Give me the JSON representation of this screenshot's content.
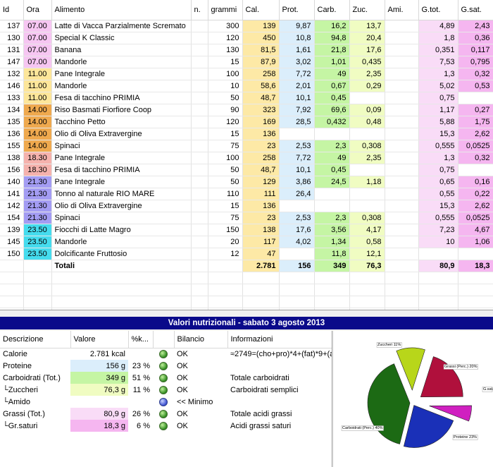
{
  "food_table": {
    "headers": [
      "Id",
      "Ora",
      "Alimento",
      "n.",
      "grammi",
      "Cal.",
      "Prot.",
      "Carb.",
      "Zuc.",
      "Ami.",
      "G.tot.",
      "G.sat."
    ],
    "rows": [
      {
        "id": "137",
        "ora": "07.00",
        "alimento": "Latte di Vacca Parzialmente Scremato",
        "n": "",
        "grammi": "300",
        "cal": "139",
        "prot": "9,87",
        "carb": "16,2",
        "zuc": "13,7",
        "ami": "",
        "gtot": "4,89",
        "gsat": "2,43",
        "ora_color": "#f6c6f2"
      },
      {
        "id": "130",
        "ora": "07.00",
        "alimento": "Special K Classic",
        "n": "",
        "grammi": "120",
        "cal": "450",
        "prot": "10,8",
        "carb": "94,8",
        "zuc": "20,4",
        "ami": "",
        "gtot": "1,8",
        "gsat": "0,36",
        "ora_color": "#f6c6f2"
      },
      {
        "id": "131",
        "ora": "07.00",
        "alimento": "Banana",
        "n": "",
        "grammi": "130",
        "cal": "81,5",
        "prot": "1,61",
        "carb": "21,8",
        "zuc": "17,6",
        "ami": "",
        "gtot": "0,351",
        "gsat": "0,117",
        "ora_color": "#f6c6f2"
      },
      {
        "id": "147",
        "ora": "07.00",
        "alimento": "Mandorle",
        "n": "",
        "grammi": "15",
        "cal": "87,9",
        "prot": "3,02",
        "carb": "1,01",
        "zuc": "0,435",
        "ami": "",
        "gtot": "7,53",
        "gsat": "0,795",
        "ora_color": "#f6c6f2"
      },
      {
        "id": "132",
        "ora": "11.00",
        "alimento": "Pane Integrale",
        "n": "",
        "grammi": "100",
        "cal": "258",
        "prot": "7,72",
        "carb": "49",
        "zuc": "2,35",
        "ami": "",
        "gtot": "1,3",
        "gsat": "0,32",
        "ora_color": "#fde69a"
      },
      {
        "id": "146",
        "ora": "11.00",
        "alimento": "Mandorle",
        "n": "",
        "grammi": "10",
        "cal": "58,6",
        "prot": "2,01",
        "carb": "0,67",
        "zuc": "0,29",
        "ami": "",
        "gtot": "5,02",
        "gsat": "0,53",
        "ora_color": "#fde69a"
      },
      {
        "id": "133",
        "ora": "11.00",
        "alimento": "Fesa di tacchino PRIMIA",
        "n": "",
        "grammi": "50",
        "cal": "48,7",
        "prot": "10,1",
        "carb": "0,45",
        "zuc": "",
        "ami": "",
        "gtot": "0,75",
        "gsat": "",
        "ora_color": "#fde69a"
      },
      {
        "id": "134",
        "ora": "14.00",
        "alimento": "Riso Basmati Fiorfiore Coop",
        "n": "",
        "grammi": "90",
        "cal": "323",
        "prot": "7,92",
        "carb": "69,6",
        "zuc": "0,09",
        "ami": "",
        "gtot": "1,17",
        "gsat": "0,27",
        "ora_color": "#efa94e"
      },
      {
        "id": "135",
        "ora": "14.00",
        "alimento": "Tacchino Petto",
        "n": "",
        "grammi": "120",
        "cal": "169",
        "prot": "28,5",
        "carb": "0,432",
        "zuc": "0,48",
        "ami": "",
        "gtot": "5,88",
        "gsat": "1,75",
        "ora_color": "#efa94e"
      },
      {
        "id": "136",
        "ora": "14.00",
        "alimento": "Olio di Oliva Extravergine",
        "n": "",
        "grammi": "15",
        "cal": "136",
        "prot": "",
        "carb": "",
        "zuc": "",
        "ami": "",
        "gtot": "15,3",
        "gsat": "2,62",
        "ora_color": "#efa94e"
      },
      {
        "id": "155",
        "ora": "14.00",
        "alimento": "Spinaci",
        "n": "",
        "grammi": "75",
        "cal": "23",
        "prot": "2,53",
        "carb": "2,3",
        "zuc": "0,308",
        "ami": "",
        "gtot": "0,555",
        "gsat": "0,0525",
        "ora_color": "#efa94e"
      },
      {
        "id": "138",
        "ora": "18.30",
        "alimento": "Pane Integrale",
        "n": "",
        "grammi": "100",
        "cal": "258",
        "prot": "7,72",
        "carb": "49",
        "zuc": "2,35",
        "ami": "",
        "gtot": "1,3",
        "gsat": "0,32",
        "ora_color": "#f5b2ad"
      },
      {
        "id": "156",
        "ora": "18.30",
        "alimento": "Fesa di tacchino PRIMIA",
        "n": "",
        "grammi": "50",
        "cal": "48,7",
        "prot": "10,1",
        "carb": "0,45",
        "zuc": "",
        "ami": "",
        "gtot": "0,75",
        "gsat": "",
        "ora_color": "#f5b2ad"
      },
      {
        "id": "140",
        "ora": "21.30",
        "alimento": "Pane Integrale",
        "n": "",
        "grammi": "50",
        "cal": "129",
        "prot": "3,86",
        "carb": "24,5",
        "zuc": "1,18",
        "ami": "",
        "gtot": "0,65",
        "gsat": "0,16",
        "ora_color": "#a39cf3"
      },
      {
        "id": "141",
        "ora": "21.30",
        "alimento": "Tonno al naturale RIO MARE",
        "n": "",
        "grammi": "110",
        "cal": "111",
        "prot": "26,4",
        "carb": "",
        "zuc": "",
        "ami": "",
        "gtot": "0,55",
        "gsat": "0,22",
        "ora_color": "#a39cf3"
      },
      {
        "id": "142",
        "ora": "21.30",
        "alimento": "Olio di Oliva Extravergine",
        "n": "",
        "grammi": "15",
        "cal": "136",
        "prot": "",
        "carb": "",
        "zuc": "",
        "ami": "",
        "gtot": "15,3",
        "gsat": "2,62",
        "ora_color": "#a39cf3"
      },
      {
        "id": "154",
        "ora": "21.30",
        "alimento": "Spinaci",
        "n": "",
        "grammi": "75",
        "cal": "23",
        "prot": "2,53",
        "carb": "2,3",
        "zuc": "0,308",
        "ami": "",
        "gtot": "0,555",
        "gsat": "0,0525",
        "ora_color": "#a39cf3"
      },
      {
        "id": "139",
        "ora": "23.50",
        "alimento": "Fiocchi di Latte Magro",
        "n": "",
        "grammi": "150",
        "cal": "138",
        "prot": "17,6",
        "carb": "3,56",
        "zuc": "4,17",
        "ami": "",
        "gtot": "7,23",
        "gsat": "4,67",
        "ora_color": "#45dcee"
      },
      {
        "id": "145",
        "ora": "23.50",
        "alimento": "Mandorle",
        "n": "",
        "grammi": "20",
        "cal": "117",
        "prot": "4,02",
        "carb": "1,34",
        "zuc": "0,58",
        "ami": "",
        "gtot": "10",
        "gsat": "1,06",
        "ora_color": "#45dcee"
      },
      {
        "id": "150",
        "ora": "23.50",
        "alimento": "Dolcificante Fruttosio",
        "n": "",
        "grammi": "12",
        "cal": "47",
        "prot": "",
        "carb": "11,8",
        "zuc": "12,1",
        "ami": "",
        "gtot": "",
        "gsat": "",
        "ora_color": "#45dcee"
      }
    ],
    "totals": {
      "label": "Totali",
      "cal": "2.781",
      "prot": "156",
      "carb": "349",
      "zuc": "76,3",
      "ami": "",
      "gtot": "80,9",
      "gsat": "18,3"
    }
  },
  "nutrition_title": "Valori nutrizionali - sabato 3 agosto 2013",
  "summary": {
    "headers": {
      "descrizione": "Descrizione",
      "valore": "Valore",
      "pct": "%k...",
      "status": "",
      "bilancio": "Bilancio",
      "informazioni": "Informazioni"
    },
    "rows": [
      {
        "desc": "Calorie",
        "valore": "2.781 kcal",
        "pct": "",
        "bilancio": "OK",
        "info": "≈2749=(cho+pro)*4+(fat)*9+(a",
        "dot": "green",
        "bg": ""
      },
      {
        "desc": "Proteine",
        "valore": "156 g",
        "pct": "23 %",
        "bilancio": "OK",
        "info": "",
        "dot": "green",
        "bg": "#dbeefb"
      },
      {
        "desc": "Carboidrati (Tot.)",
        "valore": "349 g",
        "pct": "51 %",
        "bilancio": "OK",
        "info": "Totale carboidrati",
        "dot": "green",
        "bg": "#c5f5a4"
      },
      {
        "desc": "└Zuccheri",
        "valore": "76,3 g",
        "pct": "11 %",
        "bilancio": "OK",
        "info": "Carboidrati semplici",
        "dot": "green",
        "bg": "#f0fcc2"
      },
      {
        "desc": "└Amido",
        "valore": "",
        "pct": "",
        "bilancio": "<< Minimo",
        "info": "",
        "dot": "blue",
        "bg": ""
      },
      {
        "desc": "Grassi (Tot.)",
        "valore": "80,9 g",
        "pct": "26 %",
        "bilancio": "OK",
        "info": "Totale acidi grassi",
        "dot": "green",
        "bg": "#f9dcf7"
      },
      {
        "desc": "└Gr.saturi",
        "valore": "18,3 g",
        "pct": "6 %",
        "bilancio": "OK",
        "info": "Acidi grassi saturi",
        "dot": "green",
        "bg": "#f5b6f0"
      }
    ]
  },
  "chart_data": {
    "type": "pie",
    "slices": [
      {
        "label": "Zuccheri 11%",
        "value": 11,
        "color": "#b8d61a"
      },
      {
        "label": "Grassi (Perc.) 20%",
        "value": 20,
        "color": "#b0103c"
      },
      {
        "label": "G.sat.",
        "value": 6,
        "color": "#d020c0"
      },
      {
        "label": "Proteine 23%",
        "value": 23,
        "color": "#1a30b8"
      },
      {
        "label": "Carboidrati (Perc.) 40%",
        "value": 40,
        "color": "#1c6a14"
      }
    ]
  }
}
